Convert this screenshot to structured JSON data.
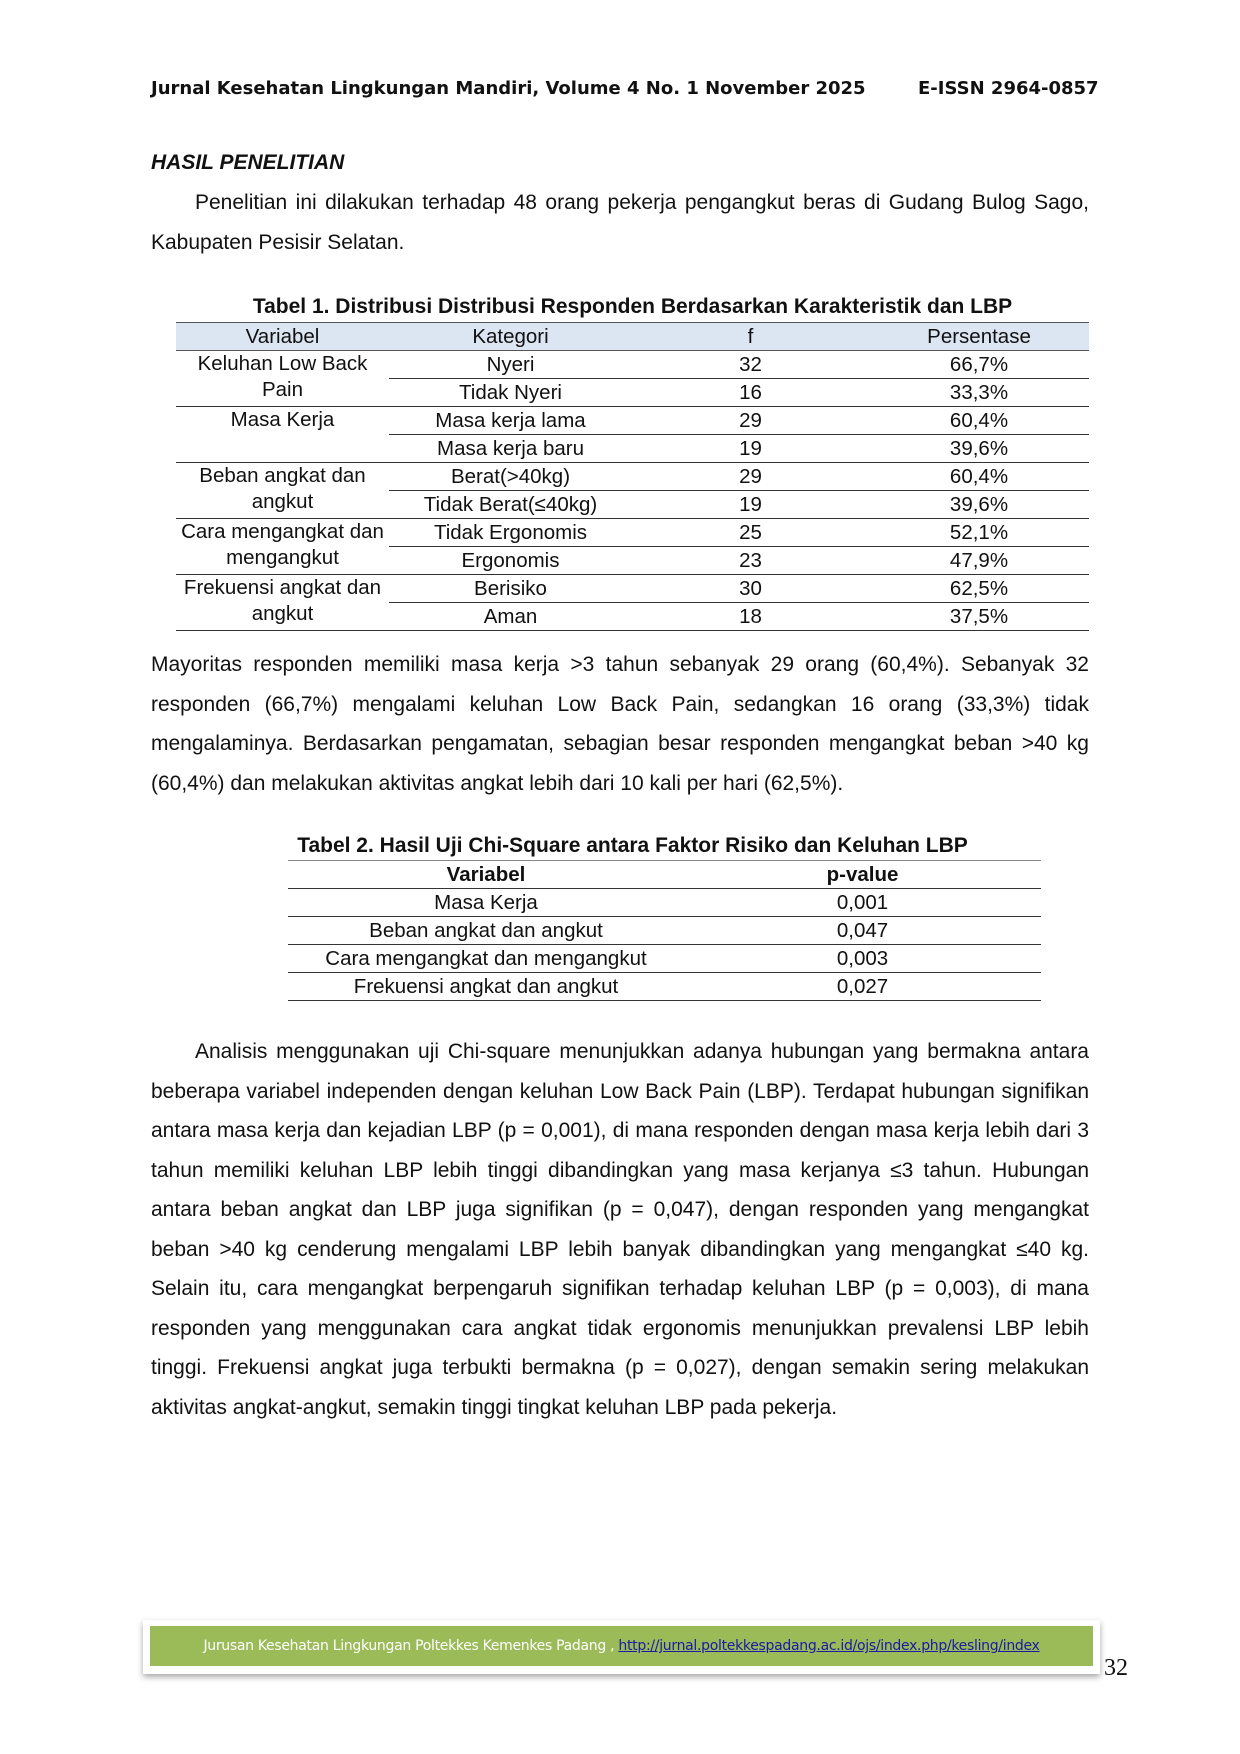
{
  "header": {
    "journal": "Jurnal Kesehatan Lingkungan Mandiri, Volume 4 No. 1 November 2025",
    "issn": "E-ISSN 2964-0857"
  },
  "section_title": "HASIL PENELITIAN",
  "paragraphs": {
    "intro": "Penelitian ini dilakukan terhadap 48 orang pekerja pengangkut beras di Gudang Bulog Sago, Kabupaten Pesisir Selatan.",
    "summary": "Mayoritas responden memiliki masa kerja >3 tahun sebanyak 29 orang (60,4%). Sebanyak 32 responden (66,7%) mengalami keluhan Low Back Pain, sedangkan 16 orang (33,3%) tidak mengalaminya. Berdasarkan pengamatan, sebagian besar responden mengangkat beban >40 kg (60,4%) dan melakukan aktivitas angkat lebih dari 10 kali per hari (62,5%).",
    "analysis": "Analisis menggunakan uji Chi-square menunjukkan adanya hubungan yang bermakna antara beberapa variabel independen dengan keluhan Low Back Pain (LBP). Terdapat hubungan signifikan antara masa kerja dan kejadian LBP (p = 0,001), di mana responden dengan masa kerja lebih dari 3 tahun memiliki keluhan LBP lebih tinggi dibandingkan yang masa kerjanya ≤3 tahun. Hubungan antara beban angkat dan LBP juga signifikan (p = 0,047), dengan responden yang mengangkat beban >40 kg cenderung mengalami LBP lebih banyak dibandingkan yang mengangkat ≤40 kg. Selain itu, cara mengangkat berpengaruh signifikan terhadap keluhan LBP (p = 0,003), di mana responden yang menggunakan cara angkat tidak ergonomis menunjukkan prevalensi LBP lebih tinggi. Frekuensi angkat juga terbukti bermakna (p = 0,027), dengan semakin sering melakukan aktivitas angkat-angkut, semakin tinggi tingkat keluhan LBP pada pekerja."
  },
  "table1": {
    "caption": "Tabel 1. Distribusi Distribusi Responden Berdasarkan Karakteristik dan LBP",
    "header_bg": "#dce6f2",
    "columns": [
      "Variabel",
      "Kategori",
      "f",
      "Persentase"
    ],
    "groups": [
      {
        "variable": "Keluhan Low Back Pain",
        "rows": [
          [
            "Nyeri",
            "32",
            "66,7%"
          ],
          [
            "Tidak Nyeri",
            "16",
            "33,3%"
          ]
        ]
      },
      {
        "variable": "Masa Kerja",
        "rows": [
          [
            "Masa kerja lama",
            "29",
            "60,4%"
          ],
          [
            "Masa kerja baru",
            "19",
            "39,6%"
          ]
        ]
      },
      {
        "variable": "Beban angkat dan angkut",
        "rows": [
          [
            "Berat(>40kg)",
            "29",
            "60,4%"
          ],
          [
            "Tidak Berat(≤40kg)",
            "19",
            "39,6%"
          ]
        ]
      },
      {
        "variable": "Cara mengangkat dan mengangkut",
        "rows": [
          [
            "Tidak Ergonomis",
            "25",
            "52,1%"
          ],
          [
            "Ergonomis",
            "23",
            "47,9%"
          ]
        ]
      },
      {
        "variable": "Frekuensi angkat dan angkut",
        "rows": [
          [
            "Berisiko",
            "30",
            "62,5%"
          ],
          [
            "Aman",
            "18",
            "37,5%"
          ]
        ]
      }
    ]
  },
  "table2": {
    "caption": "Tabel 2. Hasil Uji Chi-Square antara Faktor Risiko dan Keluhan LBP",
    "columns": [
      "Variabel",
      "p-value"
    ],
    "rows": [
      [
        "Masa Kerja",
        "0,001"
      ],
      [
        "Beban angkat dan angkut",
        "0,047"
      ],
      [
        "Cara mengangkat dan mengangkut",
        "0,003"
      ],
      [
        "Frekuensi angkat dan angkut",
        "0,027"
      ]
    ]
  },
  "footer": {
    "text": "Jurusan Kesehatan Lingkungan Poltekkes Kemenkes Padang , ",
    "link": "http://jurnal.poltekkespadang.ac.id/ojs/index.php/kesling/index",
    "bg_color": "#9bbb59",
    "page_number": "32"
  }
}
